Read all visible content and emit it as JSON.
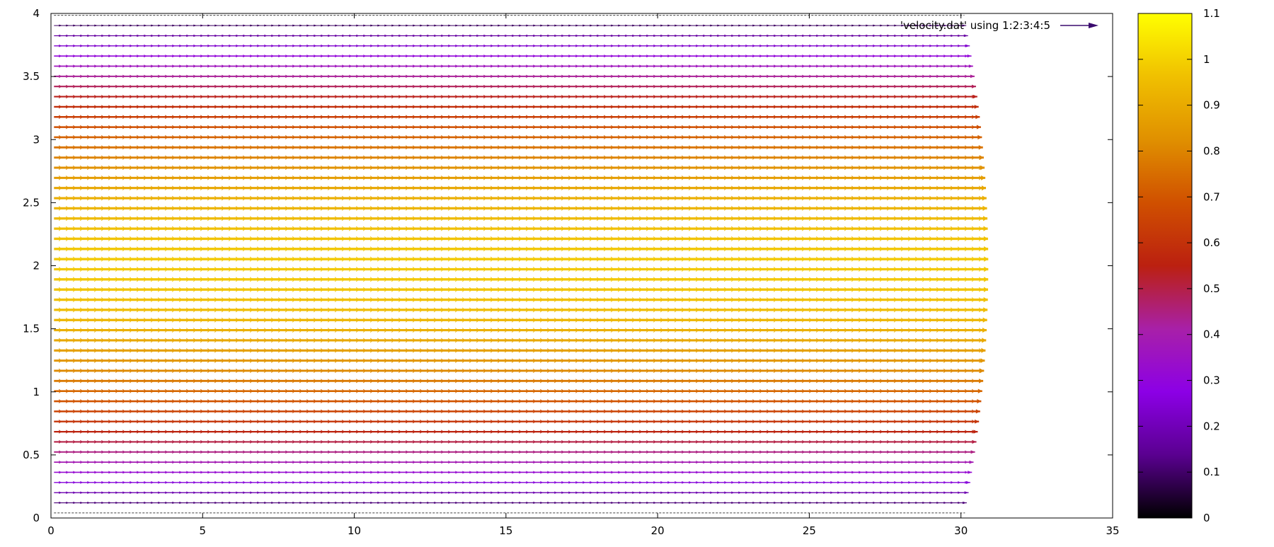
{
  "chart_data": {
    "type": "vector-field",
    "title": "",
    "xlabel": "",
    "ylabel": "",
    "xlim": [
      0,
      35
    ],
    "ylim": [
      0,
      4
    ],
    "x_ticks": [
      "0",
      "5",
      "10",
      "15",
      "20",
      "25",
      "30",
      "35"
    ],
    "y_ticks": [
      "0",
      "0.5",
      "1",
      "1.5",
      "2",
      "2.5",
      "3",
      "3.5",
      "4"
    ],
    "legend": {
      "label": "'velocity.dat' using 1:2:3:4:5",
      "placement": "top-right",
      "color": "#3a0a6e"
    },
    "colorbar": {
      "range": [
        0,
        1.1
      ],
      "ticks": [
        "0",
        "0.1",
        "0.2",
        "0.3",
        "0.4",
        "0.5",
        "0.6",
        "0.7",
        "0.8",
        "0.9",
        "1",
        "1.1"
      ],
      "palette": [
        "#000000",
        "#5a0090",
        "#8c00e6",
        "#a820a8",
        "#bb2010",
        "#d05000",
        "#e09000",
        "#f0c000",
        "#ffff00"
      ]
    },
    "grid": false,
    "rows": {
      "y_start": 0.04,
      "y_step": 0.0805,
      "count": 50,
      "x_start": 0.1,
      "x_end_at_wall": 30.1,
      "x_end_at_center": 30.9,
      "speed_at_wall": 0.0,
      "speed_at_center": 0.98
    }
  }
}
